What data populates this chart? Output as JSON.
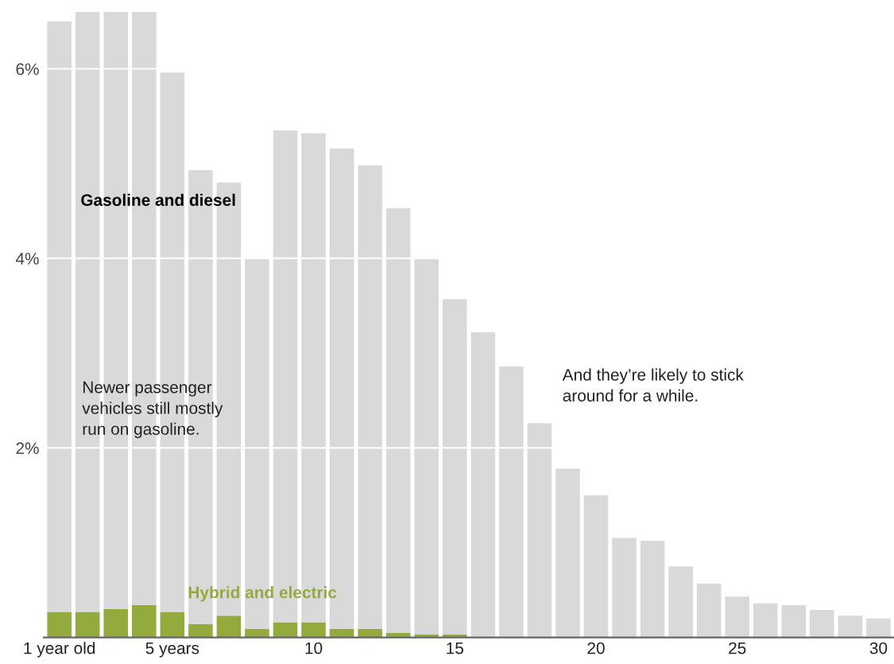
{
  "chart_data": {
    "type": "bar",
    "stacked": true,
    "categories": [
      "1 year old",
      null,
      null,
      null,
      "5 years",
      null,
      null,
      null,
      null,
      "10",
      null,
      null,
      null,
      null,
      "15",
      null,
      null,
      null,
      null,
      "20",
      null,
      null,
      null,
      null,
      "25",
      null,
      null,
      null,
      null,
      "30"
    ],
    "series": [
      {
        "name": "Hybrid and electric",
        "color": "#93aa3d",
        "values": [
          0.27,
          0.27,
          0.3,
          0.34,
          0.27,
          0.14,
          0.23,
          0.09,
          0.16,
          0.16,
          0.09,
          0.09,
          0.05,
          0.03,
          0.03,
          0,
          0,
          0,
          0,
          0,
          0,
          0,
          0,
          0,
          0,
          0,
          0,
          0,
          0,
          0
        ]
      },
      {
        "name": "Gasoline and diesel",
        "color": "#d9d9d9",
        "values": [
          6.23,
          6.33,
          6.3,
          6.26,
          5.69,
          4.79,
          4.57,
          3.91,
          5.19,
          5.16,
          5.07,
          4.89,
          4.48,
          3.97,
          3.54,
          3.22,
          2.86,
          2.26,
          1.78,
          1.5,
          1.05,
          1.02,
          0.75,
          0.57,
          0.43,
          0.36,
          0.34,
          0.29,
          0.23,
          0.2
        ]
      }
    ],
    "ylim": [
      0,
      6.6
    ],
    "yticks": [
      {
        "value": 2,
        "label": "2%"
      },
      {
        "value": 4,
        "label": "4%"
      },
      {
        "value": 6,
        "label": "6%"
      }
    ],
    "grid": "y",
    "annotations": [
      "Newer passenger\nvehicles still mostly\nrun on gasoline.",
      "And they’re likely to stick\naround for a while."
    ]
  }
}
